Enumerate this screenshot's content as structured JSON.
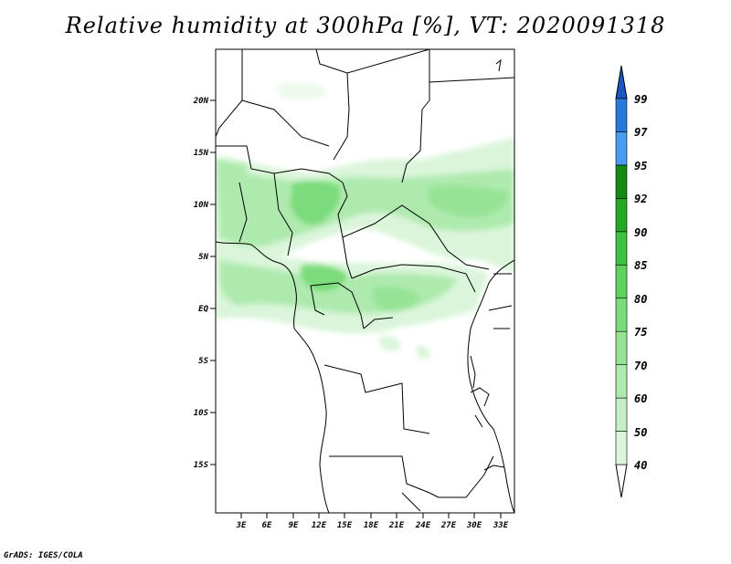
{
  "title": "Relative humidity at 300hPa [%], VT: 2020091318",
  "credit": "GrADS: IGES/COLA",
  "map": {
    "lon_range": [
      0,
      34.5
    ],
    "lat_range": [
      -19.5,
      24.5
    ],
    "lon_ticks": [
      "3E",
      "6E",
      "9E",
      "12E",
      "15E",
      "18E",
      "21E",
      "24E",
      "27E",
      "30E",
      "33E"
    ],
    "lat_ticks": [
      "20N",
      "15N",
      "10N",
      "5N",
      "EQ",
      "5S",
      "10S",
      "15S"
    ]
  },
  "colorbar": {
    "levels": [
      "40",
      "50",
      "60",
      "70",
      "75",
      "80",
      "85",
      "90",
      "92",
      "95",
      "97",
      "99"
    ],
    "colors": [
      "#eefaee",
      "#daf5da",
      "#c4efc4",
      "#aeeaae",
      "#96e396",
      "#7adc7a",
      "#5fd15f",
      "#3fc23f",
      "#25a925",
      "#158a15",
      "#4a9cf0",
      "#2a78dc",
      "#1858c0"
    ]
  },
  "features": [
    {
      "name": "sahel-band-west",
      "lon": 12,
      "lat": 11
    },
    {
      "name": "sahel-band-east",
      "lon": 28,
      "lat": 11
    },
    {
      "name": "equatorial-west",
      "lon": 4,
      "lat": 2
    },
    {
      "name": "congo-basin",
      "lon": 19,
      "lat": 1
    }
  ]
}
